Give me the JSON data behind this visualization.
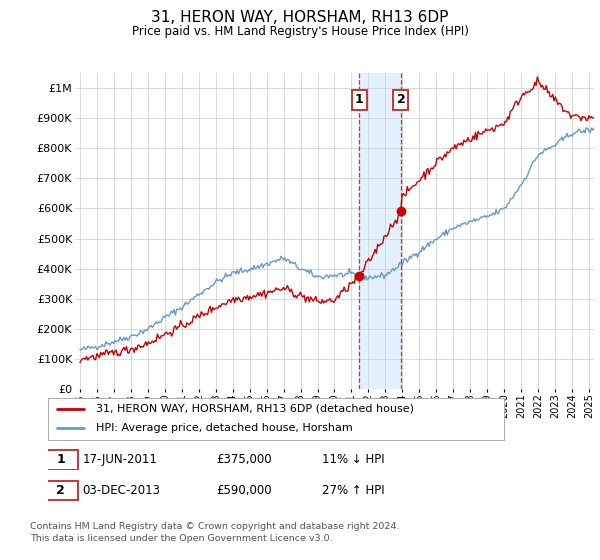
{
  "title": "31, HERON WAY, HORSHAM, RH13 6DP",
  "subtitle": "Price paid vs. HM Land Registry's House Price Index (HPI)",
  "ylabel_ticks": [
    "£0",
    "£100K",
    "£200K",
    "£300K",
    "£400K",
    "£500K",
    "£600K",
    "£700K",
    "£800K",
    "£900K",
    "£1M"
  ],
  "ytick_values": [
    0,
    100000,
    200000,
    300000,
    400000,
    500000,
    600000,
    700000,
    800000,
    900000,
    1000000
  ],
  "xlim_start": 1994.7,
  "xlim_end": 2025.3,
  "ylim": [
    0,
    1050000
  ],
  "sale1": {
    "date": 2011.46,
    "price": 375000,
    "label": "1",
    "pct": "11% ↓ HPI",
    "date_str": "17-JUN-2011"
  },
  "sale2": {
    "date": 2013.92,
    "price": 590000,
    "label": "2",
    "pct": "27% ↑ HPI",
    "date_str": "03-DEC-2013"
  },
  "legend_line1": "31, HERON WAY, HORSHAM, RH13 6DP (detached house)",
  "legend_line2": "HPI: Average price, detached house, Horsham",
  "footnote": "Contains HM Land Registry data © Crown copyright and database right 2024.\nThis data is licensed under the Open Government Licence v3.0.",
  "hpi_color": "#6699cc",
  "price_color": "#cc0000",
  "shade_color": "#ddeeff",
  "box_color": "#cc3333",
  "hpi_years": [
    1995,
    1996,
    1997,
    1998,
    1999,
    2000,
    2001,
    2002,
    2003,
    2004,
    2005,
    2006,
    2007,
    2008,
    2009,
    2010,
    2011,
    2012,
    2013,
    2014,
    2015,
    2016,
    2017,
    2018,
    2019,
    2020,
    2021,
    2022,
    2023,
    2024,
    2025
  ],
  "hpi_vals": [
    130000,
    142000,
    158000,
    175000,
    200000,
    238000,
    272000,
    315000,
    355000,
    385000,
    398000,
    415000,
    435000,
    400000,
    372000,
    378000,
    382000,
    370000,
    378000,
    418000,
    458000,
    498000,
    535000,
    555000,
    572000,
    598000,
    678000,
    778000,
    810000,
    850000,
    860000
  ],
  "price_years": [
    1995,
    1996,
    1997,
    1998,
    1999,
    2000,
    2001,
    2002,
    2003,
    2004,
    2005,
    2006,
    2007,
    2008,
    2009,
    2010,
    2011.46,
    2013.92,
    2014,
    2015,
    2016,
    2017,
    2018,
    2019,
    2020,
    2021,
    2022,
    2023,
    2024,
    2025
  ],
  "price_vals": [
    100000,
    109000,
    121000,
    133000,
    153000,
    182000,
    209000,
    242000,
    272000,
    298000,
    308000,
    320000,
    335000,
    310000,
    290000,
    295000,
    375000,
    590000,
    638000,
    695000,
    752000,
    800000,
    832000,
    858000,
    882000,
    972000,
    1020000,
    958000,
    905000,
    900000
  ],
  "hpi_noise_seed": 42,
  "hpi_noise_std": 5000,
  "price_noise_std": 7000
}
